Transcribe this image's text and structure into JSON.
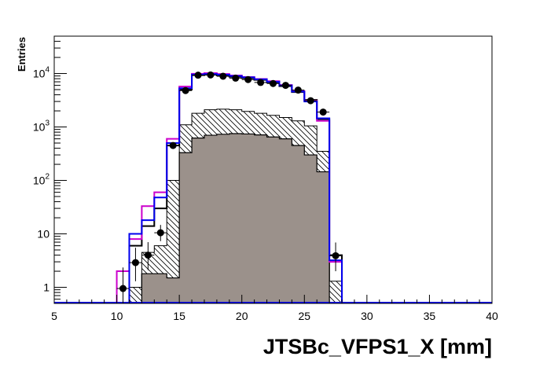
{
  "chart_data": {
    "type": "histogram",
    "title": "",
    "xlabel": "JTSBc_VFPS1_X [mm]",
    "ylabel": "Entries",
    "xlim": [
      5,
      40
    ],
    "ylim": [
      0.5,
      50000
    ],
    "y_scale": "log",
    "grid": false,
    "legend": "none",
    "bin_width": 1,
    "x_ticks": [
      "5",
      "10",
      "15",
      "20",
      "25",
      "30",
      "35",
      "40"
    ],
    "y_ticks": [
      {
        "value": 1,
        "base": "1",
        "exp": ""
      },
      {
        "value": 10,
        "base": "10",
        "exp": ""
      },
      {
        "value": 100,
        "base": "10",
        "exp": "2"
      },
      {
        "value": 1000,
        "base": "10",
        "exp": "3"
      },
      {
        "value": 10000,
        "base": "10",
        "exp": "4"
      }
    ],
    "series": [
      {
        "style": "filled",
        "color": "#9b918b",
        "bin_edges": [
          12,
          13,
          14,
          15,
          16,
          17,
          18,
          19,
          20,
          21,
          22,
          23,
          24,
          25,
          26,
          27
        ],
        "values": [
          1.8,
          1.8,
          1.5,
          330,
          620,
          700,
          730,
          750,
          740,
          710,
          650,
          600,
          450,
          300,
          145
        ]
      },
      {
        "style": "hatched",
        "color": "#000000",
        "bin_edges": [
          11,
          12,
          13,
          14,
          15,
          16,
          17,
          18,
          19,
          20,
          21,
          22,
          23,
          24,
          25,
          26,
          27,
          28
        ],
        "values": [
          1.0,
          4.5,
          6.0,
          100,
          1100,
          1800,
          2100,
          2150,
          2100,
          1950,
          1800,
          1650,
          1500,
          1300,
          1050,
          350,
          1.3
        ]
      },
      {
        "style": "line",
        "color": "#000000",
        "bin_edges": [
          11,
          12,
          13,
          14,
          15,
          16,
          17,
          18,
          19,
          20,
          21,
          22,
          23,
          24,
          25,
          26,
          27,
          28
        ],
        "values": [
          6.0,
          14,
          30,
          450,
          5000,
          9300,
          9500,
          9200,
          8700,
          8200,
          7600,
          6800,
          5800,
          4500,
          3200,
          1400,
          4.0
        ]
      },
      {
        "style": "line",
        "color": "#cc00cc",
        "bin_edges": [
          10,
          11,
          12,
          13,
          14,
          15,
          16,
          17,
          18,
          19,
          20,
          21,
          22,
          23,
          24,
          25,
          26,
          27,
          28
        ],
        "values": [
          2.0,
          8.0,
          33,
          60,
          600,
          5700,
          9900,
          10200,
          9800,
          9200,
          8600,
          7900,
          7200,
          6100,
          4700,
          3100,
          1300,
          3.0
        ]
      },
      {
        "style": "line",
        "color": "#0000ee",
        "bin_edges": [
          11,
          12,
          13,
          14,
          15,
          16,
          17,
          18,
          19,
          20,
          21,
          22,
          23,
          24,
          25,
          26,
          27,
          28
        ],
        "values": [
          10,
          18,
          48,
          500,
          5300,
          9600,
          9800,
          9500,
          9000,
          8500,
          7800,
          7000,
          6000,
          4600,
          3000,
          1450,
          3.2
        ]
      },
      {
        "style": "points",
        "color": "#000000",
        "x": [
          10.5,
          11.5,
          12.5,
          13.5,
          14.5,
          15.5,
          16.5,
          17.5,
          18.5,
          19.5,
          20.5,
          21.5,
          22.5,
          23.5,
          24.5,
          25.5,
          26.5,
          27.5
        ],
        "y": [
          0.95,
          2.9,
          4.0,
          10.5,
          450,
          4800,
          9300,
          9400,
          8900,
          8200,
          7700,
          6800,
          6500,
          6000,
          4900,
          3100,
          1900,
          3.9
        ],
        "yerr_low": [
          0.6,
          1.6,
          1.9,
          3.2,
          21,
          69,
          96,
          97,
          94,
          91,
          88,
          82,
          81,
          77,
          70,
          56,
          44,
          1.9
        ],
        "yerr_high": [
          1.4,
          2.6,
          3.0,
          4.2,
          21,
          69,
          96,
          97,
          94,
          91,
          88,
          82,
          81,
          77,
          70,
          56,
          44,
          3.0
        ]
      }
    ]
  }
}
